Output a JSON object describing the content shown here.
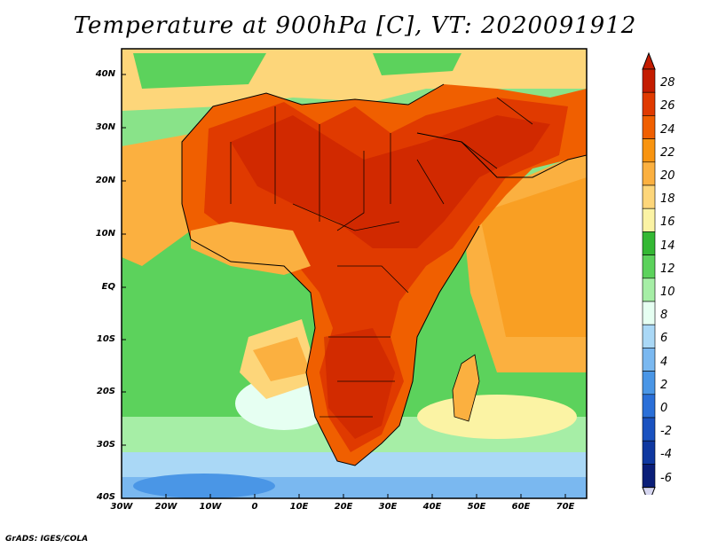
{
  "title": "Temperature at 900hPa [C], VT: 2020091912",
  "credit": "GrADS: IGES/COLA",
  "map": {
    "lon_range": [
      -30,
      75
    ],
    "lat_range": [
      -40,
      45
    ],
    "x_ticks": [
      "30W",
      "20W",
      "10W",
      "0",
      "10E",
      "20E",
      "30E",
      "40E",
      "50E",
      "60E",
      "70E"
    ],
    "y_ticks": [
      "40N",
      "30N",
      "20N",
      "10N",
      "EQ",
      "10S",
      "20S",
      "30S",
      "40S"
    ],
    "variable": "Temperature",
    "level": "900hPa",
    "units": "C",
    "valid_time": "2020091912"
  },
  "colorbar": {
    "labels": [
      "28",
      "26",
      "24",
      "22",
      "20",
      "18",
      "16",
      "14",
      "12",
      "10",
      "8",
      "6",
      "4",
      "2",
      "0",
      "-2",
      "-4",
      "-6"
    ],
    "colors": [
      "#c41c00",
      "#e03a00",
      "#f05f00",
      "#f89410",
      "#fbb040",
      "#fdd67a",
      "#fbf3a4",
      "#34b834",
      "#5cd25c",
      "#a6eea6",
      "#e6fff2",
      "#aad8f6",
      "#7ab8f0",
      "#4a96e6",
      "#2a6fd8",
      "#1a52c0",
      "#0f38a0",
      "#0a1e78"
    ]
  },
  "colors": {
    "ocean_cool": "#a6eea6",
    "land_hot": "#e03a00",
    "border": "#000000"
  }
}
